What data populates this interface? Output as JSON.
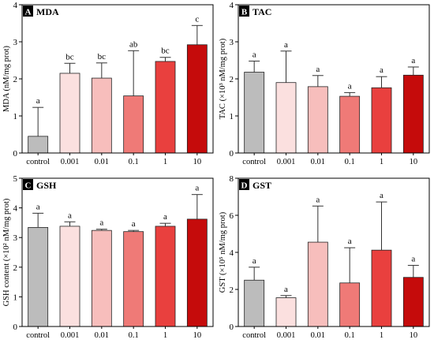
{
  "colors": {
    "axis": "#000000",
    "error_bar": "#333333",
    "bar_outline": "#222222",
    "treatments": {
      "control": "#bcbcbc",
      "0.001": "#fbe0df",
      "0.01": "#f7bebc",
      "0.1": "#ef7a77",
      "1": "#e9403e",
      "10": "#c50b0b"
    }
  },
  "chart_data": [
    {
      "panel": "A",
      "title": "MDA",
      "type": "bar",
      "categories": [
        "control",
        "0.001",
        "0.01",
        "0.1",
        "1",
        "10"
      ],
      "values": [
        0.45,
        2.15,
        2.02,
        1.54,
        2.47,
        2.92
      ],
      "errors": [
        0.78,
        0.27,
        0.41,
        1.22,
        0.11,
        0.52
      ],
      "significance": [
        "a",
        "bc",
        "bc",
        "ab",
        "bc",
        "c"
      ],
      "ylabel": "MDA (nM/mg prot)",
      "ylim": [
        0,
        4
      ],
      "yticks": [
        0,
        1,
        2,
        3,
        4
      ],
      "show_xticklabels": true
    },
    {
      "panel": "B",
      "title": "TAC",
      "type": "bar",
      "categories": [
        "control",
        "0.001",
        "0.01",
        "0.1",
        "1",
        "10"
      ],
      "values": [
        2.18,
        1.9,
        1.79,
        1.53,
        1.76,
        2.1
      ],
      "errors": [
        0.3,
        0.85,
        0.3,
        0.1,
        0.3,
        0.22
      ],
      "significance": [
        "a",
        "a",
        "a",
        "a",
        "a",
        "a"
      ],
      "ylabel": "TAC (×10³ nM/mg prot)",
      "ylim": [
        0,
        4
      ],
      "yticks": [
        0,
        1,
        2,
        3,
        4
      ],
      "show_xticklabels": true
    },
    {
      "panel": "C",
      "title": "GSH",
      "type": "bar",
      "categories": [
        "control",
        "0.001",
        "0.01",
        "0.1",
        "1",
        "10"
      ],
      "values": [
        3.34,
        3.38,
        3.24,
        3.2,
        3.38,
        3.62
      ],
      "errors": [
        0.48,
        0.15,
        0.04,
        0.04,
        0.1,
        0.83
      ],
      "significance": [
        "a",
        "a",
        "a",
        "a",
        "a",
        "a"
      ],
      "ylabel": "GSH content (×10² nM/mg prot)",
      "ylim": [
        0,
        5
      ],
      "yticks": [
        0,
        1,
        2,
        3,
        4,
        5
      ],
      "show_xticklabels": true
    },
    {
      "panel": "D",
      "title": "GST",
      "type": "bar",
      "categories": [
        "control",
        "0.001",
        "0.01",
        "0.1",
        "1",
        "10"
      ],
      "values": [
        2.5,
        1.55,
        4.55,
        2.35,
        4.12,
        2.65
      ],
      "errors": [
        0.7,
        0.12,
        1.95,
        1.9,
        2.6,
        0.65
      ],
      "significance": [
        "a",
        "a",
        "a",
        "a",
        "a",
        "a"
      ],
      "ylabel": "GST (×10⁵ nM/mg prot)",
      "ylim": [
        0,
        8
      ],
      "yticks": [
        0,
        2,
        4,
        6,
        8
      ],
      "show_xticklabels": true
    }
  ]
}
